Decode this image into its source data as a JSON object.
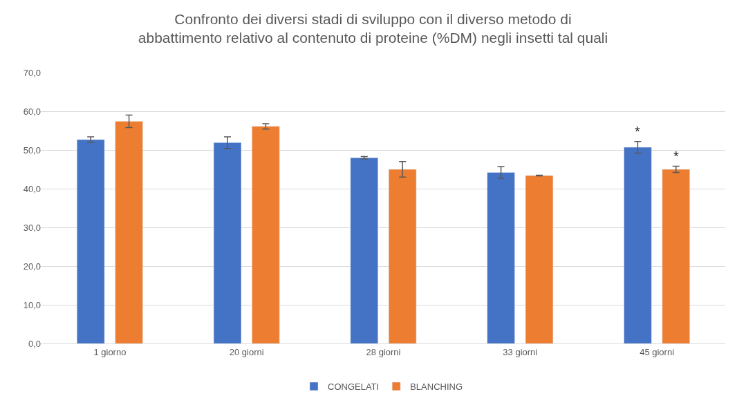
{
  "chart_data": {
    "type": "bar",
    "title": "Confronto dei diversi stadi di sviluppo con il diverso metodo di\nabbattimento relativo al contenuto di proteine (%DM) negli insetti tal quali",
    "categories": [
      "1 giorno",
      "20 giorni",
      "28 giorni",
      "33 giorni",
      "45 giorni"
    ],
    "series": [
      {
        "name": "CONGELATI",
        "color": "#4472c4",
        "values": [
          52.7,
          51.9,
          48.0,
          44.2,
          50.7
        ],
        "errors": [
          0.7,
          1.5,
          0.3,
          1.5,
          1.5
        ]
      },
      {
        "name": "BLANCHING",
        "color": "#ed7d31",
        "values": [
          57.4,
          56.1,
          45.0,
          43.4,
          45.0
        ],
        "errors": [
          1.6,
          0.7,
          2.0,
          0.1,
          0.8
        ]
      }
    ],
    "ylim": [
      0,
      70
    ],
    "yticks": [
      {
        "value": 0,
        "label": "0,0"
      },
      {
        "value": 10,
        "label": "10,0"
      },
      {
        "value": 20,
        "label": "20,0"
      },
      {
        "value": 30,
        "label": "30,0"
      },
      {
        "value": 40,
        "label": "40,0"
      },
      {
        "value": 50,
        "label": "50,0"
      },
      {
        "value": 60,
        "label": "60,0"
      },
      {
        "value": 70,
        "label": "70,0"
      }
    ],
    "annotations": [
      "*",
      "*"
    ],
    "grid": "y",
    "legend": "bottom"
  }
}
